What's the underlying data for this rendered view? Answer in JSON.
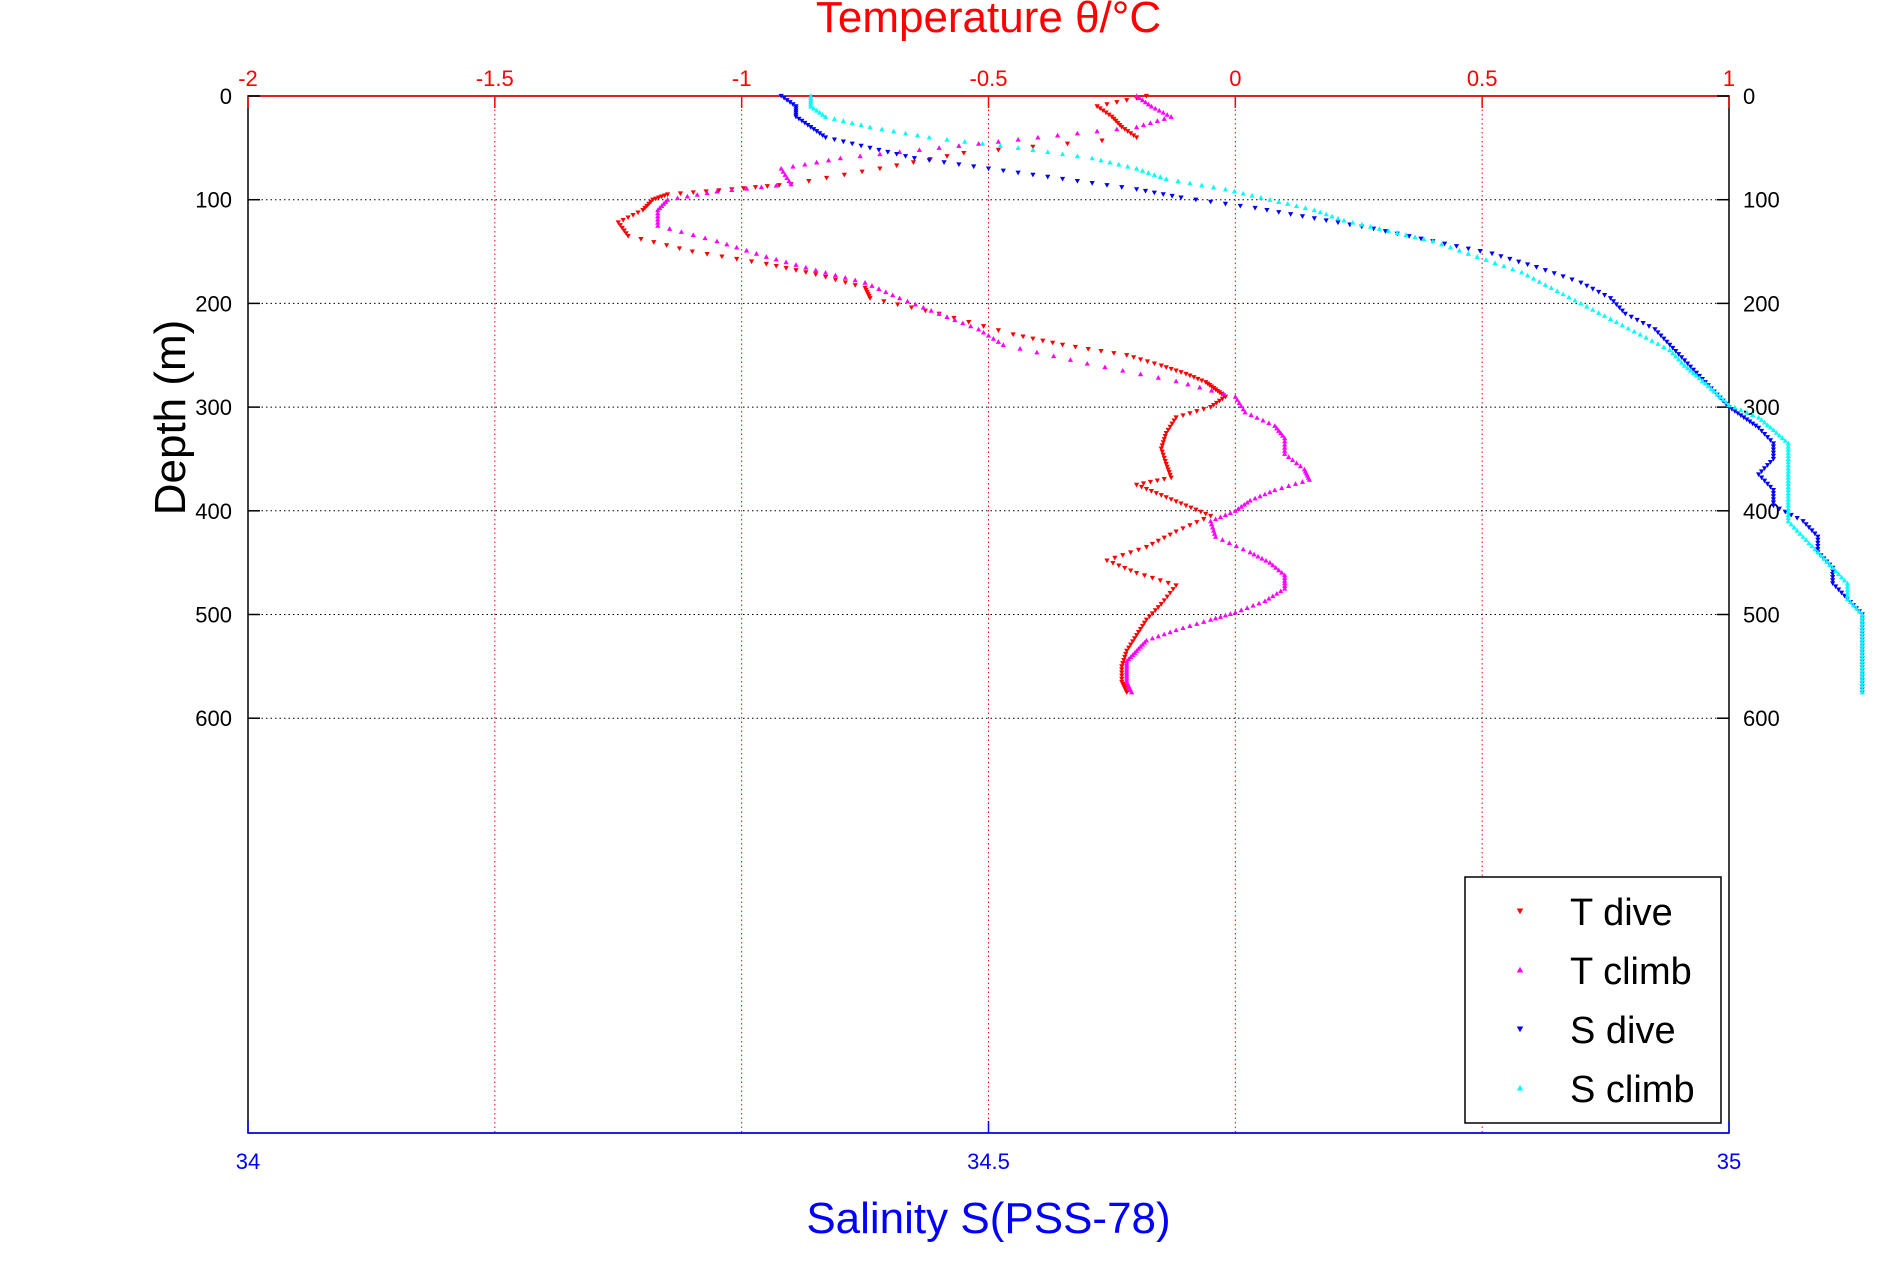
{
  "chart_data": {
    "type": "scatter",
    "title": "Temperature θ/°C",
    "xlabel": "Salinity S(PSS-78)",
    "ylabel": "Depth (m)",
    "top_axis": {
      "label": "Temperature θ/°C",
      "range": [
        -2,
        1
      ],
      "ticks": [
        -2,
        -1.5,
        -1,
        -0.5,
        0,
        0.5,
        1
      ],
      "tick_labels": [
        "-2",
        "-1.5",
        "-1",
        "-0.5",
        "0",
        "0.5",
        "1"
      ],
      "color": "#ff0000",
      "grid": true
    },
    "bottom_axis": {
      "label": "Salinity S(PSS-78)",
      "range": [
        34,
        35
      ],
      "ticks": [
        34,
        34.5,
        35
      ],
      "tick_labels": [
        "34",
        "34.5",
        "35"
      ],
      "color": "#0000ff"
    },
    "y_axis": {
      "range": [
        0,
        1000
      ],
      "reversed": true,
      "ticks": [
        0,
        100,
        200,
        300,
        400,
        500,
        600
      ],
      "tick_labels": [
        "0",
        "100",
        "200",
        "300",
        "400",
        "500",
        "600"
      ],
      "grid": true
    },
    "legend": {
      "position": "bottom-right"
    },
    "series": [
      {
        "name": "T dive",
        "axis": "temperature",
        "color": "#ff0000",
        "marker": "triangle-down",
        "points": [
          [
            -0.18,
            0
          ],
          [
            -0.28,
            10
          ],
          [
            -0.25,
            20
          ],
          [
            -0.23,
            30
          ],
          [
            -0.2,
            40
          ],
          [
            -0.55,
            55
          ],
          [
            -0.72,
            70
          ],
          [
            -0.9,
            85
          ],
          [
            -1.02,
            90
          ],
          [
            -1.15,
            95
          ],
          [
            -1.18,
            100
          ],
          [
            -1.2,
            110
          ],
          [
            -1.25,
            122
          ],
          [
            -1.23,
            135
          ],
          [
            -1.1,
            150
          ],
          [
            -0.95,
            162
          ],
          [
            -0.85,
            172
          ],
          [
            -0.75,
            185
          ],
          [
            -0.74,
            195
          ],
          [
            -0.6,
            210
          ],
          [
            -0.45,
            230
          ],
          [
            -0.35,
            240
          ],
          [
            -0.22,
            250
          ],
          [
            -0.15,
            260
          ],
          [
            -0.1,
            268
          ],
          [
            -0.06,
            276
          ],
          [
            -0.04,
            283
          ],
          [
            -0.02,
            290
          ],
          [
            -0.05,
            300
          ],
          [
            -0.12,
            310
          ],
          [
            -0.14,
            325
          ],
          [
            -0.15,
            340
          ],
          [
            -0.14,
            355
          ],
          [
            -0.13,
            368
          ],
          [
            -0.2,
            375
          ],
          [
            -0.15,
            385
          ],
          [
            -0.1,
            395
          ],
          [
            -0.05,
            405
          ],
          [
            -0.12,
            420
          ],
          [
            -0.18,
            435
          ],
          [
            -0.26,
            448
          ],
          [
            -0.2,
            460
          ],
          [
            -0.12,
            472
          ],
          [
            -0.15,
            490
          ],
          [
            -0.18,
            505
          ],
          [
            -0.2,
            520
          ],
          [
            -0.22,
            535
          ],
          [
            -0.23,
            550
          ],
          [
            -0.23,
            565
          ],
          [
            -0.22,
            575
          ]
        ]
      },
      {
        "name": "T climb",
        "axis": "temperature",
        "color": "#ff00ff",
        "marker": "triangle-up",
        "points": [
          [
            -0.2,
            0
          ],
          [
            -0.17,
            10
          ],
          [
            -0.13,
            20
          ],
          [
            -0.2,
            30
          ],
          [
            -0.4,
            40
          ],
          [
            -0.6,
            50
          ],
          [
            -0.8,
            60
          ],
          [
            -0.92,
            70
          ],
          [
            -0.9,
            85
          ],
          [
            -1.05,
            92
          ],
          [
            -1.15,
            100
          ],
          [
            -1.17,
            110
          ],
          [
            -1.17,
            125
          ],
          [
            -1.05,
            140
          ],
          [
            -0.95,
            155
          ],
          [
            -0.85,
            168
          ],
          [
            -0.75,
            180
          ],
          [
            -0.68,
            195
          ],
          [
            -0.6,
            210
          ],
          [
            -0.52,
            225
          ],
          [
            -0.47,
            240
          ],
          [
            -0.3,
            258
          ],
          [
            -0.12,
            275
          ],
          [
            0.0,
            290
          ],
          [
            0.02,
            305
          ],
          [
            0.08,
            318
          ],
          [
            0.1,
            330
          ],
          [
            0.1,
            345
          ],
          [
            0.14,
            360
          ],
          [
            0.15,
            370
          ],
          [
            0.08,
            380
          ],
          [
            0.03,
            390
          ],
          [
            0.0,
            400
          ],
          [
            -0.05,
            410
          ],
          [
            -0.04,
            425
          ],
          [
            0.03,
            440
          ],
          [
            0.07,
            450
          ],
          [
            0.1,
            462
          ],
          [
            0.1,
            475
          ],
          [
            0.06,
            487
          ],
          [
            0.0,
            498
          ],
          [
            -0.05,
            505
          ],
          [
            -0.12,
            515
          ],
          [
            -0.18,
            525
          ],
          [
            -0.2,
            535
          ],
          [
            -0.22,
            545
          ],
          [
            -0.22,
            555
          ],
          [
            -0.22,
            565
          ],
          [
            -0.21,
            575
          ]
        ]
      },
      {
        "name": "S dive",
        "axis": "salinity",
        "color": "#0000ff",
        "marker": "triangle-down",
        "points": [
          [
            34.36,
            0
          ],
          [
            34.37,
            10
          ],
          [
            34.37,
            20
          ],
          [
            34.38,
            30
          ],
          [
            34.39,
            40
          ],
          [
            34.42,
            50
          ],
          [
            34.45,
            60
          ],
          [
            34.5,
            70
          ],
          [
            34.55,
            80
          ],
          [
            34.6,
            90
          ],
          [
            34.63,
            98
          ],
          [
            34.68,
            108
          ],
          [
            34.72,
            118
          ],
          [
            34.76,
            128
          ],
          [
            34.8,
            140
          ],
          [
            34.84,
            152
          ],
          [
            34.87,
            165
          ],
          [
            34.9,
            180
          ],
          [
            34.92,
            195
          ],
          [
            34.93,
            210
          ],
          [
            34.95,
            225
          ],
          [
            34.96,
            240
          ],
          [
            34.97,
            255
          ],
          [
            34.98,
            270
          ],
          [
            34.99,
            285
          ],
          [
            35.0,
            300
          ],
          [
            35.01,
            310
          ],
          [
            35.02,
            320
          ],
          [
            35.03,
            335
          ],
          [
            35.03,
            350
          ],
          [
            35.02,
            365
          ],
          [
            35.03,
            380
          ],
          [
            35.03,
            395
          ],
          [
            35.05,
            410
          ],
          [
            35.06,
            425
          ],
          [
            35.06,
            440
          ],
          [
            35.07,
            455
          ],
          [
            35.07,
            470
          ],
          [
            35.08,
            485
          ],
          [
            35.09,
            500
          ],
          [
            35.09,
            515
          ],
          [
            35.09,
            530
          ],
          [
            35.09,
            545
          ],
          [
            35.09,
            560
          ],
          [
            35.09,
            575
          ]
        ]
      },
      {
        "name": "S climb",
        "axis": "salinity",
        "color": "#00ffff",
        "marker": "triangle-up",
        "points": [
          [
            34.38,
            0
          ],
          [
            34.38,
            10
          ],
          [
            34.39,
            20
          ],
          [
            34.42,
            30
          ],
          [
            34.46,
            40
          ],
          [
            34.52,
            50
          ],
          [
            34.57,
            60
          ],
          [
            34.6,
            70
          ],
          [
            34.62,
            80
          ],
          [
            34.66,
            90
          ],
          [
            34.69,
            100
          ],
          [
            34.72,
            110
          ],
          [
            34.74,
            120
          ],
          [
            34.77,
            130
          ],
          [
            34.8,
            140
          ],
          [
            34.83,
            155
          ],
          [
            34.86,
            170
          ],
          [
            34.88,
            185
          ],
          [
            34.9,
            200
          ],
          [
            34.92,
            215
          ],
          [
            34.94,
            230
          ],
          [
            34.96,
            245
          ],
          [
            34.97,
            260
          ],
          [
            34.98,
            272
          ],
          [
            34.99,
            285
          ],
          [
            35.0,
            298
          ],
          [
            35.02,
            310
          ],
          [
            35.03,
            322
          ],
          [
            35.04,
            335
          ],
          [
            35.04,
            350
          ],
          [
            35.04,
            365
          ],
          [
            35.04,
            380
          ],
          [
            35.04,
            395
          ],
          [
            35.04,
            410
          ],
          [
            35.05,
            425
          ],
          [
            35.06,
            440
          ],
          [
            35.07,
            455
          ],
          [
            35.08,
            470
          ],
          [
            35.08,
            485
          ],
          [
            35.09,
            500
          ],
          [
            35.09,
            515
          ],
          [
            35.09,
            530
          ],
          [
            35.09,
            545
          ],
          [
            35.09,
            560
          ],
          [
            35.09,
            575
          ]
        ]
      }
    ]
  }
}
